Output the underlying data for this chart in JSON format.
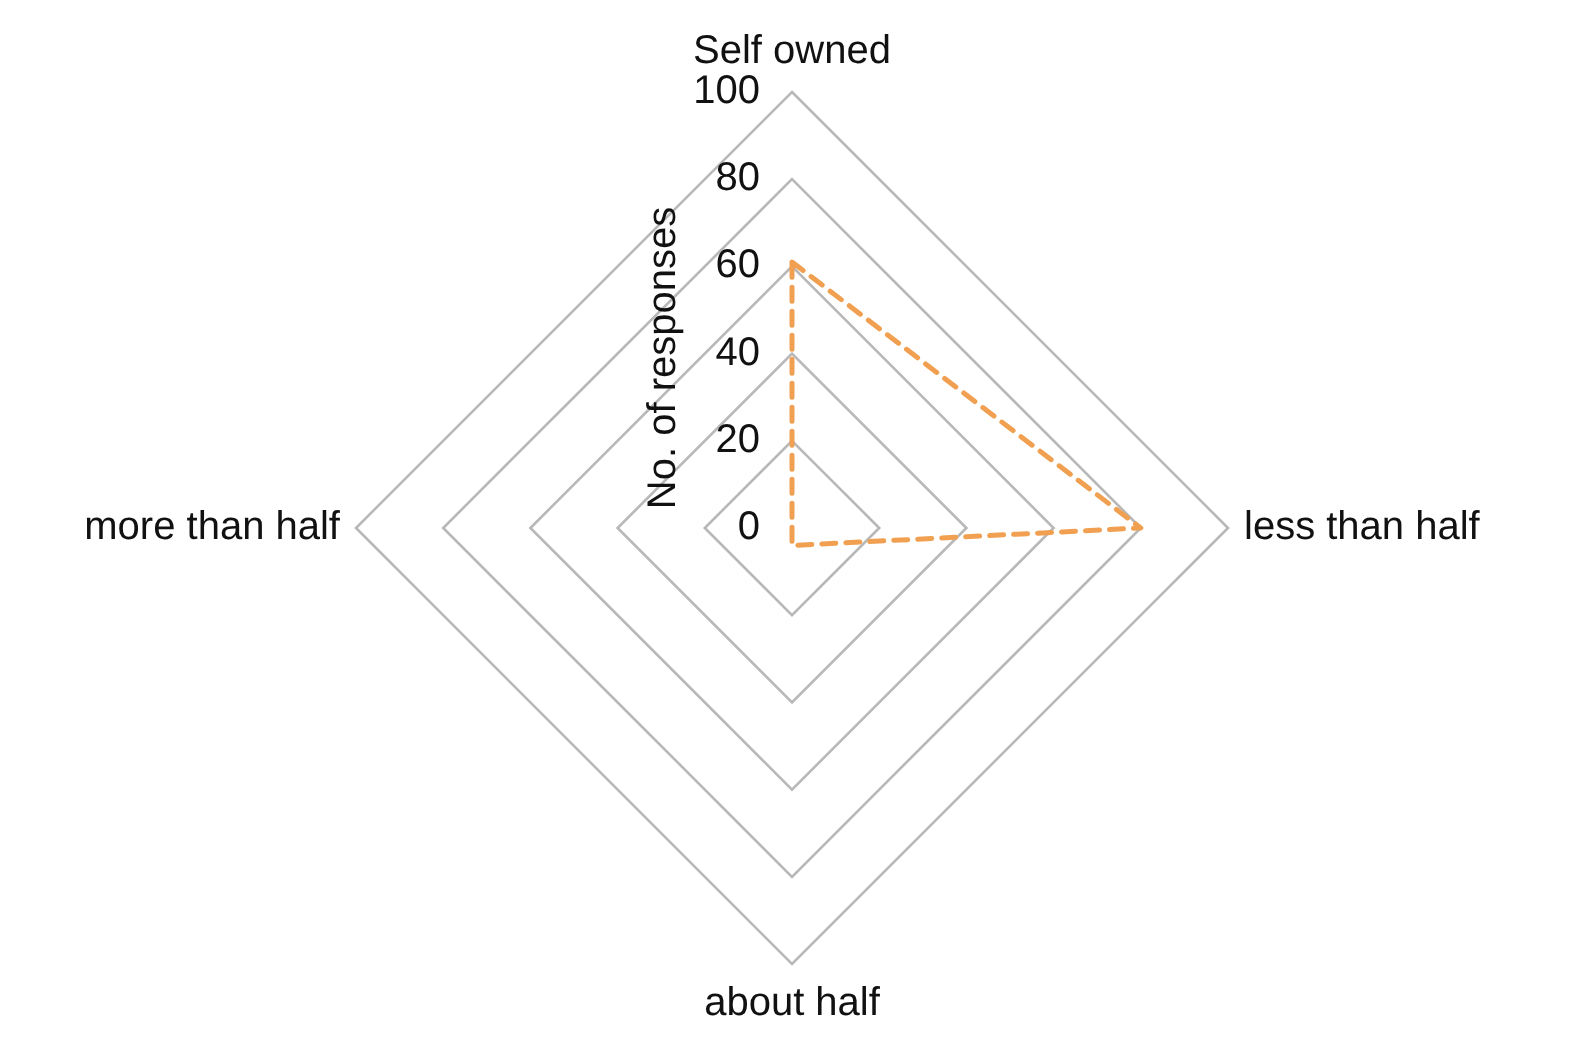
{
  "chart_data": {
    "type": "radar",
    "categories": [
      "Self owned",
      "less than half",
      "about half",
      "more than half"
    ],
    "series": [
      {
        "color": "#f0a050",
        "values": [
          61,
          80,
          4,
          0
        ]
      }
    ],
    "ylabel": "No. of responses",
    "ylim": [
      0,
      100
    ],
    "yticks": [
      0,
      20,
      40,
      60,
      80,
      100
    ],
    "grid": true,
    "legend": false,
    "marker": "none",
    "line_style": "dashed"
  }
}
